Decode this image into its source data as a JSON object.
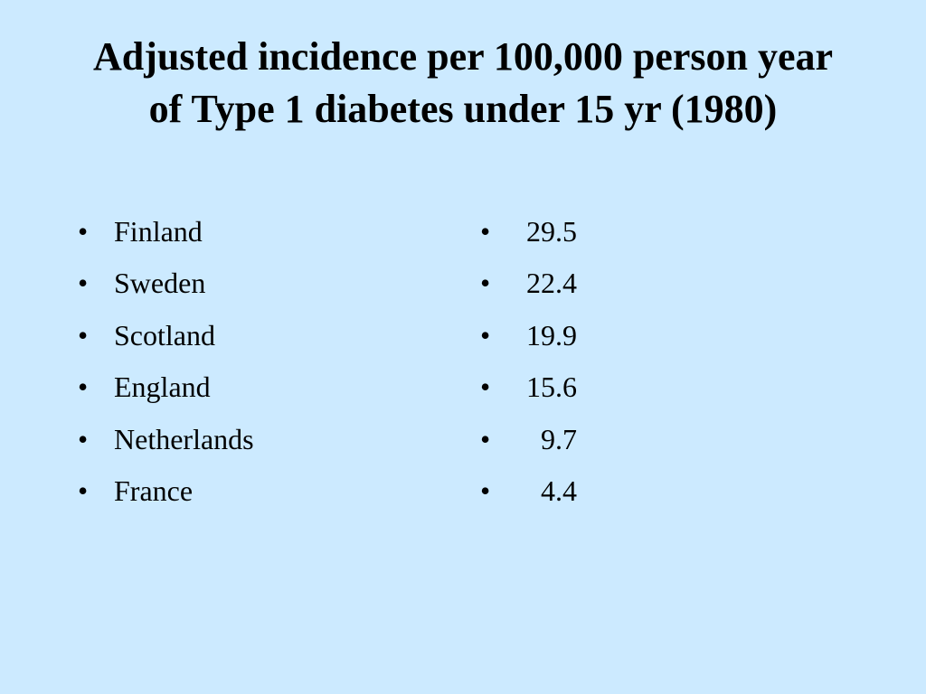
{
  "slide": {
    "title_line1": "Adjusted incidence per 100,000 person year",
    "title_line2": "of Type 1 diabetes under 15 yr (1980)",
    "bullet_glyph": "•",
    "countries": [
      "Finland",
      "Sweden",
      "Scotland",
      "England",
      "Netherlands",
      "France"
    ],
    "values": [
      "29.5",
      "22.4",
      "19.9",
      "15.6",
      "9.7",
      "4.4"
    ],
    "colors": {
      "background": "#cceaff",
      "text": "#000000"
    }
  }
}
